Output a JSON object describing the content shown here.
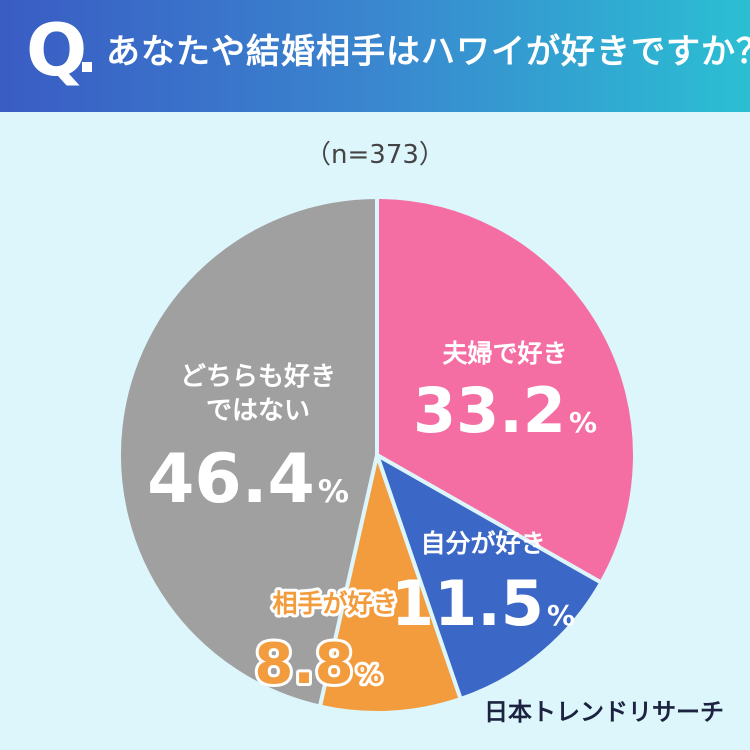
{
  "header": {
    "q_label": "Q",
    "question": "あなたや結婚相手はハワイが好きですか？"
  },
  "sample_size": "（n=373）",
  "brand": "日本トレンドリサーチ",
  "chart_data": {
    "type": "pie",
    "title": "あなたや結婚相手はハワイが好きですか？",
    "slices": [
      {
        "label": "夫婦で好き",
        "value": 33.2,
        "display": "33.2",
        "unit": "%",
        "color": "#f56ea3",
        "label_color": "#ffffff"
      },
      {
        "label": "自分が好き",
        "value": 11.5,
        "display": "11.5",
        "unit": "%",
        "color": "#3b67c6",
        "label_color": "#ffffff"
      },
      {
        "label": "相手が好き",
        "value": 8.8,
        "display": "8.8",
        "unit": "%",
        "color": "#f39c3e",
        "label_color": "#f39c3e"
      },
      {
        "label": "どちらも好きではない",
        "label_lines": [
          "どちらも好き",
          "ではない"
        ],
        "value": 46.4,
        "display": "46.4",
        "unit": "%",
        "color": "#a0a0a0",
        "label_color": "#ffffff"
      }
    ],
    "start_angle": "12 o'clock",
    "direction": "clockwise",
    "legend": "none"
  }
}
